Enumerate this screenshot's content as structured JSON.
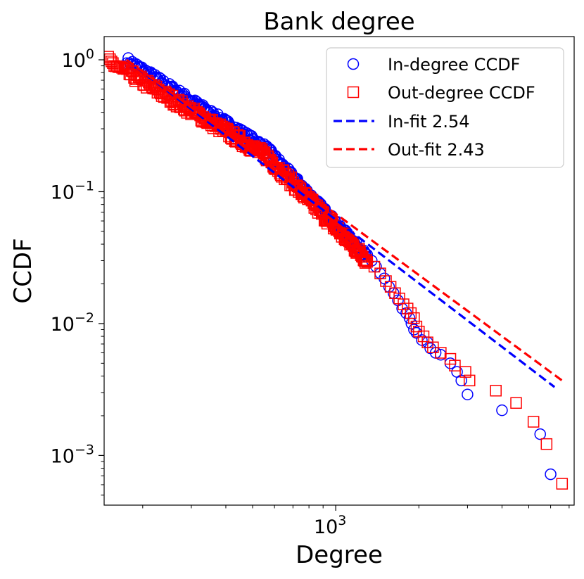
{
  "chart_data": {
    "type": "scatter",
    "title": "Bank degree",
    "xlabel": "Degree",
    "ylabel": "CCDF",
    "xscale": "log",
    "yscale": "log",
    "xlim": [
      145,
      7300
    ],
    "ylim": [
      0.00042,
      1.5
    ],
    "x_ticks": [
      {
        "value": 1000,
        "base": "10",
        "exp": "3"
      }
    ],
    "y_ticks": [
      {
        "value": 1,
        "base": "10",
        "exp": "0"
      },
      {
        "value": 0.1,
        "base": "10",
        "exp": "−1"
      },
      {
        "value": 0.01,
        "base": "10",
        "exp": "−2"
      },
      {
        "value": 0.001,
        "base": "10",
        "exp": "−3"
      }
    ],
    "legend_position": "top-right",
    "series": [
      {
        "name": "In-degree CCDF",
        "marker": "circle",
        "color": "#0000ff",
        "dense": {
          "from": 175,
          "to": 1300,
          "y_at_from": 1.0,
          "y_at_to": 0.032,
          "knee": 560,
          "exp_before": 1.58,
          "jitter": 0.05
        },
        "points": [
          [
            1350,
            0.03
          ],
          [
            1400,
            0.027
          ],
          [
            1450,
            0.024
          ],
          [
            1500,
            0.022
          ],
          [
            1560,
            0.019
          ],
          [
            1620,
            0.017
          ],
          [
            1680,
            0.015
          ],
          [
            1740,
            0.013
          ],
          [
            1800,
            0.012
          ],
          [
            1850,
            0.011
          ],
          [
            1880,
            0.01
          ],
          [
            1920,
            0.009
          ],
          [
            1960,
            0.0085
          ],
          [
            2050,
            0.0075
          ],
          [
            2150,
            0.0072
          ],
          [
            2200,
            0.0065
          ],
          [
            2300,
            0.006
          ],
          [
            2400,
            0.0058
          ],
          [
            2600,
            0.005
          ],
          [
            2750,
            0.0043
          ],
          [
            2850,
            0.0037
          ],
          [
            3000,
            0.0029
          ],
          [
            4000,
            0.0022
          ],
          [
            5500,
            0.00145
          ],
          [
            6000,
            0.00072
          ]
        ]
      },
      {
        "name": "Out-degree CCDF",
        "marker": "square",
        "color": "#ff0000",
        "dense": {
          "from": 150,
          "to": 1300,
          "y_at_from": 0.98,
          "y_at_to": 0.03,
          "knee": 560,
          "exp_before": 1.5,
          "jitter": 0.07
        },
        "points": [
          [
            1380,
            0.027
          ],
          [
            1450,
            0.024
          ],
          [
            1520,
            0.021
          ],
          [
            1580,
            0.019
          ],
          [
            1640,
            0.017
          ],
          [
            1700,
            0.0155
          ],
          [
            1760,
            0.014
          ],
          [
            1820,
            0.013
          ],
          [
            1870,
            0.012
          ],
          [
            1920,
            0.011
          ],
          [
            1960,
            0.0095
          ],
          [
            2000,
            0.0087
          ],
          [
            2080,
            0.008
          ],
          [
            2150,
            0.0072
          ],
          [
            2250,
            0.0066
          ],
          [
            2400,
            0.006
          ],
          [
            2600,
            0.0054
          ],
          [
            2700,
            0.0048
          ],
          [
            2950,
            0.0043
          ],
          [
            3050,
            0.0037
          ],
          [
            3800,
            0.0031
          ],
          [
            4500,
            0.0025
          ],
          [
            5200,
            0.0018
          ],
          [
            5800,
            0.00122
          ],
          [
            6600,
            0.00061
          ]
        ]
      },
      {
        "name": "In-fit 2.54",
        "style": "dashed",
        "color": "#0000ff",
        "points": [
          [
            175,
            1.0
          ],
          [
            6200,
            0.0033
          ]
        ]
      },
      {
        "name": "Out-fit 2.43",
        "style": "dashed",
        "color": "#ff0000",
        "points": [
          [
            175,
            1.0
          ],
          [
            6600,
            0.0037
          ]
        ]
      }
    ]
  }
}
